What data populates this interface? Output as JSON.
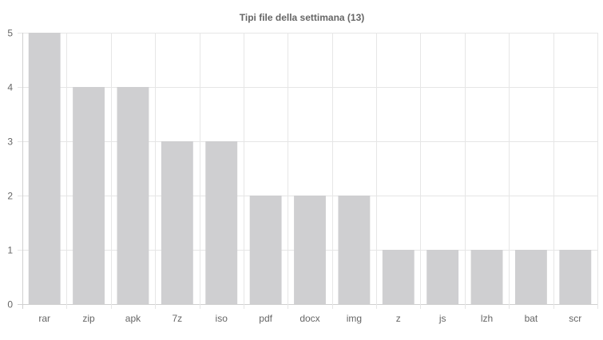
{
  "chart_data": {
    "type": "bar",
    "title": "Tipi file della settimana (13)",
    "xlabel": "",
    "ylabel": "",
    "categories": [
      "rar",
      "zip",
      "apk",
      "7z",
      "iso",
      "pdf",
      "docx",
      "img",
      "z",
      "js",
      "lzh",
      "bat",
      "scr"
    ],
    "values": [
      5,
      4,
      4,
      3,
      3,
      2,
      2,
      2,
      1,
      1,
      1,
      1,
      1
    ],
    "ylim": [
      0,
      5
    ],
    "yticks": [
      "0",
      "1",
      "2",
      "3",
      "4",
      "5"
    ],
    "grid": true,
    "legend": "none",
    "colors": {
      "bar": "#cfcfd1",
      "grid": "#e6e6e6",
      "axis": "#d0d0d0",
      "tick_text": "#666666",
      "title_text": "#666666"
    }
  }
}
